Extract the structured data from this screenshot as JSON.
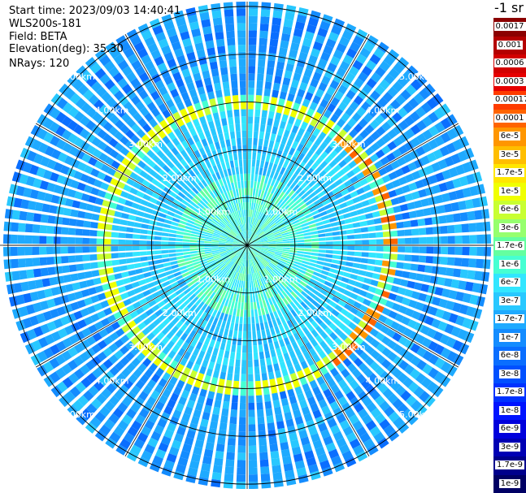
{
  "header": {
    "start_time": "Start time: 2023/09/03 14:40:41",
    "device": "WLS200s-181",
    "field": "Field: BETA",
    "elevation": "Elevation(deg): 35.30",
    "nrays": "NRays: 120"
  },
  "colorbar": {
    "units_label": "-1 sr",
    "labels": [
      "0.0017",
      "0.001",
      "0.0006",
      "0.0003",
      "0.00017",
      "0.0001",
      "6e-5",
      "3e-5",
      "1.7e-5",
      "1e-5",
      "6e-6",
      "3e-6",
      "1.7e-6",
      "1e-6",
      "6e-7",
      "3e-7",
      "1.7e-7",
      "1e-7",
      "6e-8",
      "3e-8",
      "1.7e-8",
      "1e-8",
      "6e-9",
      "3e-9",
      "1.7e-9",
      "1e-9"
    ],
    "colors": [
      "#8b0000",
      "#b40000",
      "#d20000",
      "#e60000",
      "#ff3c00",
      "#ff6400",
      "#ff9600",
      "#ffbe00",
      "#ffe600",
      "#f0ff00",
      "#c8ff32",
      "#96ff6e",
      "#64ffa0",
      "#46ffd2",
      "#32e6ff",
      "#28c8ff",
      "#1eaaff",
      "#148cff",
      "#0a6eff",
      "#0050ff",
      "#0032ff",
      "#0014ff",
      "#0000dc",
      "#0000b4",
      "#00008c",
      "#000064"
    ]
  },
  "chart_data": {
    "type": "heatmap",
    "projection": "polar (PPI scan)",
    "field": "BETA",
    "rays": 120,
    "range_rings_km": [
      1.0,
      2.0,
      3.0,
      4.0,
      5.0
    ],
    "ring_labels": [
      "1.00km",
      "2.00km",
      "3.00km",
      "4.00km",
      "5.00km"
    ],
    "max_range_km": 5.1,
    "spoke_interval_deg": 30,
    "features": [
      {
        "description_range_km": [
          2.9,
          3.1
        ],
        "level": "1e-5 to 6e-5"
      },
      {
        "description_range_km": [
          0.0,
          1.5
        ],
        "level": "3e-7 to 1e-6"
      },
      {
        "description_range_km": [
          3.1,
          5.1
        ],
        "level": "1e-8 to 1e-7"
      }
    ]
  }
}
